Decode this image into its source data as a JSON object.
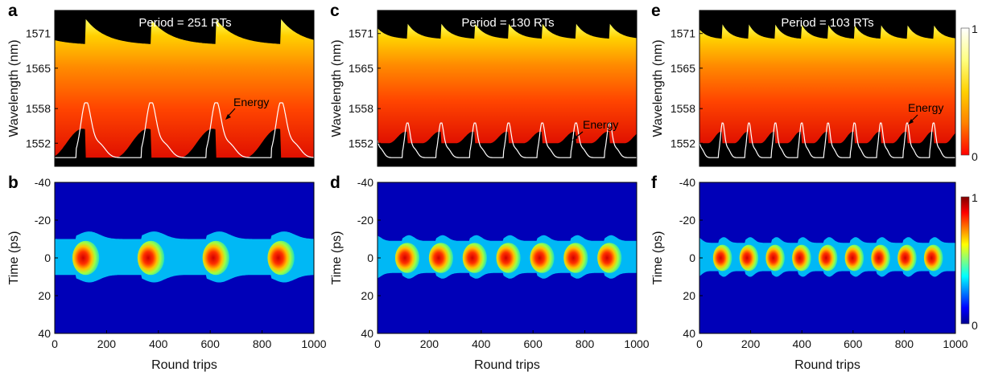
{
  "figure": {
    "panels": {
      "a": {
        "letter": "a",
        "title": "Period = 251 RTs",
        "ylabel": "Wavelength (nm)",
        "yticks": [
          "1571",
          "1565",
          "1558",
          "1552"
        ],
        "annotation": "Energy"
      },
      "c": {
        "letter": "c",
        "title": "Period = 130 RTs",
        "ylabel": "Wavelength (nm)",
        "yticks": [
          "1571",
          "1565",
          "1558",
          "1552"
        ],
        "annotation": "Energy"
      },
      "e": {
        "letter": "e",
        "title": "Period = 103 RTs",
        "ylabel": "Wavelength (nm)",
        "yticks": [
          "1571",
          "1565",
          "1558",
          "1552"
        ],
        "annotation": "Energy"
      },
      "b": {
        "letter": "b",
        "ylabel": "Time (ps)",
        "yticks": [
          "-40",
          "-20",
          "0",
          "20",
          "40"
        ],
        "xlabel": "Round trips",
        "xticks": [
          "0",
          "200",
          "400",
          "600",
          "800",
          "1000"
        ]
      },
      "d": {
        "letter": "d",
        "ylabel": "Time (ps)",
        "yticks": [
          "-40",
          "-20",
          "0",
          "20",
          "40"
        ],
        "xlabel": "Round trips",
        "xticks": [
          "0",
          "200",
          "400",
          "600",
          "800",
          "1000"
        ]
      },
      "f": {
        "letter": "f",
        "ylabel": "Time (ps)",
        "yticks": [
          "-40",
          "-20",
          "0",
          "20",
          "40"
        ],
        "xlabel": "Round trips",
        "xticks": [
          "0",
          "200",
          "400",
          "600",
          "800",
          "1000"
        ]
      }
    },
    "colorbars": {
      "spectral": {
        "max_label": "1",
        "min_label": "0",
        "colors": [
          "#ff0000",
          "#ff8000",
          "#ffd000",
          "#ffff80",
          "#ffffff"
        ]
      },
      "temporal": {
        "max_label": "1",
        "min_label": "0",
        "colors": [
          "#00008f",
          "#0000ff",
          "#0080ff",
          "#00ffff",
          "#80ff80",
          "#ffff00",
          "#ff8000",
          "#ff0000",
          "#800000"
        ]
      }
    }
  },
  "chart_data": [
    {
      "panel": "a",
      "type": "heatmap",
      "title": "Period = 251 RTs",
      "xlabel": "",
      "ylabel": "Wavelength (nm)",
      "xlim": [
        0,
        1000
      ],
      "ylim": [
        1548,
        1575
      ],
      "yticks": [
        1571,
        1565,
        1558,
        1552
      ],
      "period": 251,
      "phase": 120,
      "spectrum_upper_edge_nm": [
        1569,
        1573.5
      ],
      "spectrum_lower_edge_nm": [
        1549.5,
        1554.5
      ],
      "energy_curve_peaks_x": [
        120,
        371,
        622,
        873
      ],
      "annotation": "Energy",
      "colormap": "hot"
    },
    {
      "panel": "c",
      "type": "heatmap",
      "title": "Period = 130 RTs",
      "xlabel": "",
      "ylabel": "Wavelength (nm)",
      "xlim": [
        0,
        1000
      ],
      "ylim": [
        1548,
        1575
      ],
      "yticks": [
        1571,
        1565,
        1558,
        1552
      ],
      "period": 130,
      "phase": 115,
      "spectrum_upper_edge_nm": [
        1570,
        1572.8
      ],
      "spectrum_lower_edge_nm": [
        1552,
        1554
      ],
      "energy_curve_peaks_x": [
        115,
        245,
        375,
        505,
        635,
        765,
        895
      ],
      "annotation": "Energy",
      "colormap": "hot"
    },
    {
      "panel": "e",
      "type": "heatmap",
      "title": "Period = 103 RTs",
      "xlabel": "",
      "ylabel": "Wavelength (nm)",
      "xlim": [
        0,
        1000
      ],
      "ylim": [
        1548,
        1575
      ],
      "yticks": [
        1571,
        1565,
        1558,
        1552
      ],
      "period": 103,
      "phase": 90,
      "spectrum_upper_edge_nm": [
        1570,
        1572.6
      ],
      "spectrum_lower_edge_nm": [
        1552,
        1554
      ],
      "energy_curve_peaks_x": [
        90,
        193,
        296,
        399,
        502,
        605,
        708,
        811,
        914
      ],
      "annotation": "Energy",
      "colormap": "hot"
    },
    {
      "panel": "b",
      "type": "heatmap",
      "xlabel": "Round trips",
      "ylabel": "Time (ps)",
      "xlim": [
        0,
        1000
      ],
      "ylim": [
        -40,
        40
      ],
      "xticks": [
        0,
        200,
        400,
        600,
        800,
        1000
      ],
      "yticks": [
        -40,
        -20,
        0,
        20,
        40
      ],
      "period": 251,
      "phase": 120,
      "pulse_center_ps": 0,
      "pulse_halfwidth_ps": [
        8,
        12
      ],
      "colormap": "jet"
    },
    {
      "panel": "d",
      "type": "heatmap",
      "xlabel": "Round trips",
      "ylabel": "Time (ps)",
      "xlim": [
        0,
        1000
      ],
      "ylim": [
        -40,
        40
      ],
      "xticks": [
        0,
        200,
        400,
        600,
        800,
        1000
      ],
      "yticks": [
        -40,
        -20,
        0,
        20,
        40
      ],
      "period": 130,
      "phase": 115,
      "pulse_center_ps": 0,
      "pulse_halfwidth_ps": [
        7,
        10
      ],
      "colormap": "jet"
    },
    {
      "panel": "f",
      "type": "heatmap",
      "xlabel": "Round trips",
      "ylabel": "Time (ps)",
      "xlim": [
        0,
        1000
      ],
      "ylim": [
        -40,
        40
      ],
      "xticks": [
        0,
        200,
        400,
        600,
        800,
        1000
      ],
      "yticks": [
        -40,
        -20,
        0,
        20,
        40
      ],
      "period": 103,
      "phase": 90,
      "pulse_center_ps": 0,
      "pulse_halfwidth_ps": [
        6,
        9
      ],
      "colormap": "jet"
    }
  ]
}
